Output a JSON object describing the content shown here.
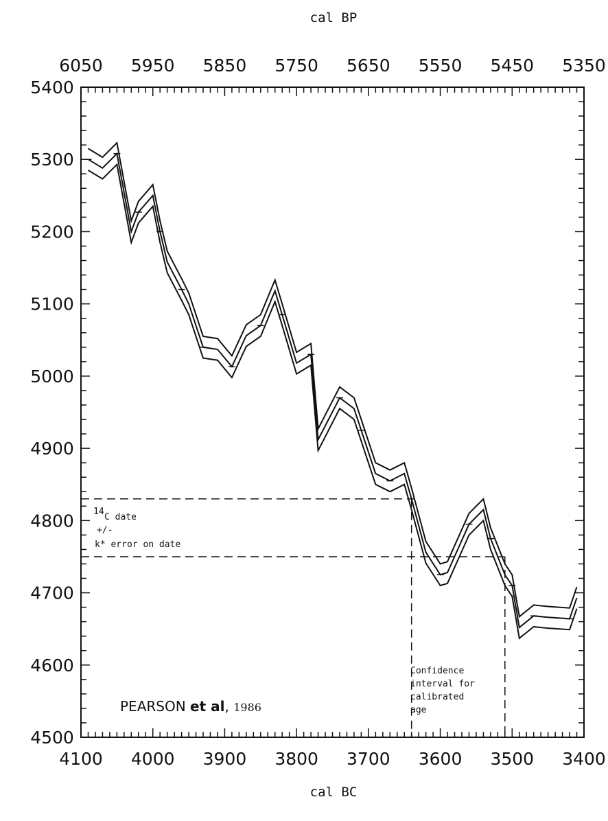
{
  "chart_data": {
    "type": "line",
    "x_top_label": "cal BP",
    "x_bottom_label": "cal BC",
    "x_bottom_ticks": [
      "4100",
      "4000",
      "3900",
      "3800",
      "3700",
      "3600",
      "3500",
      "3400"
    ],
    "x_top_ticks": [
      "6050",
      "5950",
      "5850",
      "5750",
      "5650",
      "5550",
      "5450",
      "5350"
    ],
    "y_ticks": [
      "5400",
      "5300",
      "5200",
      "5100",
      "5000",
      "4900",
      "4800",
      "4700",
      "4600",
      "4500"
    ],
    "xlim": [
      4100,
      3400
    ],
    "ylim": [
      4500,
      5400
    ],
    "offset": 15,
    "calibration_curve": {
      "x": [
        4090,
        4070,
        4050,
        4030,
        4020,
        4000,
        3990,
        3980,
        3960,
        3950,
        3930,
        3910,
        3890,
        3870,
        3850,
        3830,
        3820,
        3800,
        3780,
        3770,
        3740,
        3720,
        3710,
        3690,
        3670,
        3650,
        3640,
        3620,
        3600,
        3590,
        3560,
        3540,
        3530,
        3510,
        3500,
        3490,
        3470,
        3450,
        3420,
        3410
      ],
      "y": [
        5300,
        5288,
        5308,
        5200,
        5227,
        5250,
        5200,
        5158,
        5120,
        5100,
        5040,
        5037,
        5013,
        5056,
        5070,
        5118,
        5085,
        5018,
        5030,
        4912,
        4970,
        4955,
        4925,
        4865,
        4855,
        4865,
        4830,
        4756,
        4725,
        4728,
        4795,
        4815,
        4775,
        4725,
        4710,
        4652,
        4668,
        4666,
        4664,
        4693
      ]
    },
    "radiocarbon_date": {
      "label_superscript": "14",
      "label_line1": "C date",
      "label_line2": "+/-",
      "label_line3": "k* error on date",
      "upper": 4830,
      "lower": 4750
    },
    "confidence_interval": {
      "label_line1": "Confidence",
      "label_line2": "interval for",
      "label_line3": "calibrated",
      "label_line4": "age",
      "from": 3640,
      "to": 3510
    },
    "credit": {
      "name": "PEARSON",
      "etal": "et al",
      "comma": ",",
      "year": "1986"
    }
  }
}
